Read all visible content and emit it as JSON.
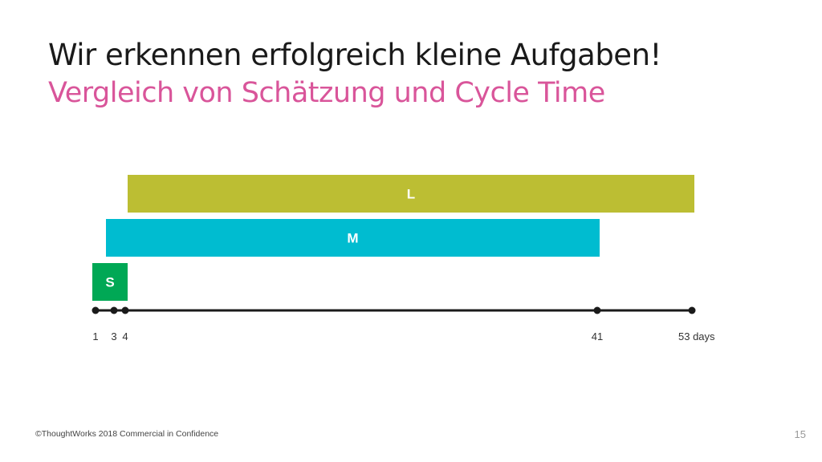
{
  "slide": {
    "title": "Wir erkennen erfolgreich kleine Aufgaben!",
    "subtitle": "Vergleich von Schätzung und Cycle Time",
    "footer": "©ThoughtWorks 2018 Commercial in Confidence",
    "page_number": "15"
  },
  "chart_data": {
    "type": "bar",
    "orientation": "horizontal-range",
    "title": "",
    "xlabel": "",
    "ylabel": "",
    "categories": [
      "L",
      "M",
      "S"
    ],
    "series": [
      {
        "values": [
          {
            "label": "L",
            "start": 4,
            "end": 53,
            "color": "#bcbe33"
          },
          {
            "label": "M",
            "start": 3,
            "end": 41,
            "color": "#00bcd0"
          },
          {
            "label": "S",
            "start": 1,
            "end": 4,
            "color": "#00a855"
          }
        ]
      }
    ],
    "axis_ticks": [
      {
        "value": 1,
        "label": "1"
      },
      {
        "value": 3,
        "label": "3"
      },
      {
        "value": 4,
        "label": "4"
      },
      {
        "value": 41,
        "label": "41"
      },
      {
        "value": 53,
        "label": "53 days"
      }
    ],
    "xlim": [
      1,
      53
    ],
    "grid": false,
    "legend": "none"
  }
}
